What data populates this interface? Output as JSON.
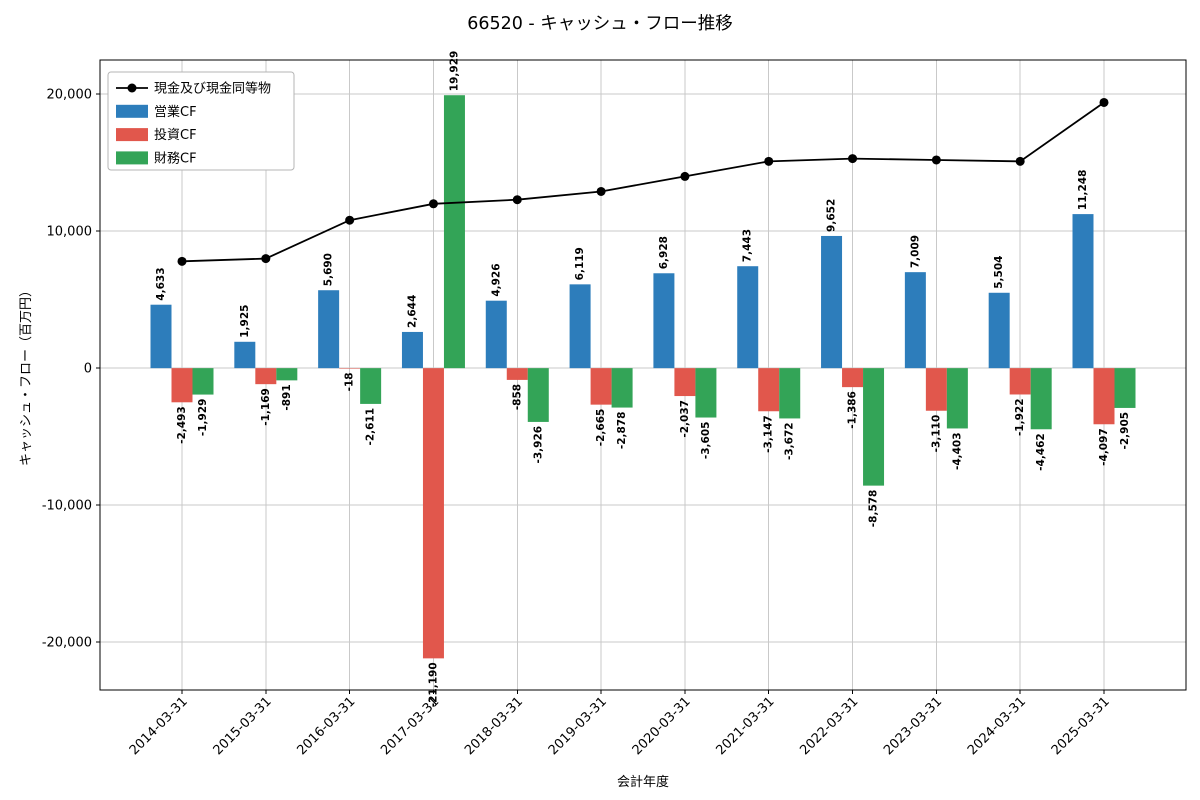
{
  "chart_data": {
    "type": "bar+line",
    "title": "66520 - キャッシュ・フロー推移",
    "xlabel": "会計年度",
    "ylabel": "キャッシュ・フロー（百万円）",
    "ylim": [
      -23500,
      22500
    ],
    "yticks": [
      -20000,
      -10000,
      0,
      10000,
      20000
    ],
    "grid": true,
    "legend_position": "upper-left",
    "categories": [
      "2014-03-31",
      "2015-03-31",
      "2016-03-31",
      "2017-03-31",
      "2018-03-31",
      "2019-03-31",
      "2020-03-31",
      "2021-03-31",
      "2022-03-31",
      "2023-03-31",
      "2024-03-31",
      "2025-03-31"
    ],
    "bar_series": [
      {
        "key": "operating-cf",
        "name": "営業CF",
        "color": "#2d7dbb",
        "values": [
          4633,
          1925,
          5690,
          2644,
          4926,
          6119,
          6928,
          7443,
          9652,
          7009,
          5504,
          11248
        ]
      },
      {
        "key": "investing-cf",
        "name": "投資CF",
        "color": "#e1574c",
        "values": [
          -2493,
          -1169,
          -18,
          -21190,
          -858,
          -2665,
          -2037,
          -3147,
          -1386,
          -3110,
          -1922,
          -4097
        ]
      },
      {
        "key": "financing-cf",
        "name": "財務CF",
        "color": "#33a457",
        "values": [
          -1929,
          -891,
          -2611,
          19929,
          -3926,
          -2878,
          -3605,
          -3672,
          -8578,
          -4403,
          -4462,
          -2905
        ]
      }
    ],
    "line_series": {
      "key": "cash-and-equivalents",
      "name": "現金及び現金同等物",
      "color": "#000000",
      "values": [
        7800,
        8000,
        10800,
        12000,
        12300,
        12900,
        14000,
        15100,
        15300,
        15200,
        15100,
        19400
      ]
    }
  }
}
